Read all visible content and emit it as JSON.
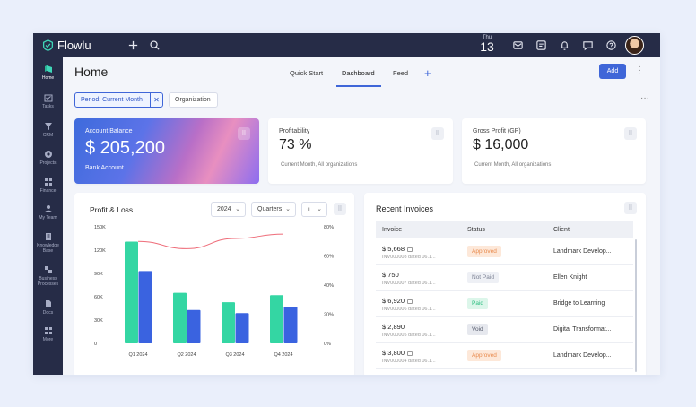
{
  "app": {
    "name": "Flowlu",
    "date_dow": "Thu",
    "date_day": "13"
  },
  "sidebar": {
    "items": [
      {
        "label": "Home",
        "icon": "home-icon"
      },
      {
        "label": "Tasks",
        "icon": "tasks-icon"
      },
      {
        "label": "CRM",
        "icon": "crm-icon"
      },
      {
        "label": "Projects",
        "icon": "projects-icon"
      },
      {
        "label": "Finance",
        "icon": "finance-icon"
      },
      {
        "label": "My Team",
        "icon": "team-icon"
      },
      {
        "label": "Knowledge Base",
        "icon": "knowledge-icon"
      },
      {
        "label": "Business Processes",
        "icon": "processes-icon"
      },
      {
        "label": "Docs",
        "icon": "docs-icon"
      },
      {
        "label": "More",
        "icon": "more-icon"
      }
    ]
  },
  "header": {
    "title": "Home",
    "tabs": [
      "Quick Start",
      "Dashboard",
      "Feed"
    ],
    "active_tab": "Dashboard",
    "add_label": "Add"
  },
  "filters": {
    "period": "Period: Current Month",
    "organization": "Organization"
  },
  "balance": {
    "label": "Account Balance",
    "value": "$ 205,200",
    "sub": "Bank Account"
  },
  "profitability": {
    "label": "Profitability",
    "value": "73 %",
    "sub": "Current Month, All organizations"
  },
  "gross_profit": {
    "label": "Gross Profit (GP)",
    "value": "$ 16,000",
    "sub": "Current Month, All organizations"
  },
  "profit_loss": {
    "title": "Profit & Loss",
    "year": "2024",
    "period": "Quarters",
    "chart_type_icon": "bar-chart-icon"
  },
  "chart_data": {
    "type": "bar",
    "categories": [
      "Q1 2024",
      "Q2 2024",
      "Q3 2024",
      "Q4 2024"
    ],
    "series": [
      {
        "name": "",
        "color": "#34d6a3",
        "values": [
          131000,
          65000,
          53000,
          62000
        ]
      },
      {
        "name": "",
        "color": "#3a63e0",
        "values": [
          93000,
          43000,
          39000,
          47000
        ]
      }
    ],
    "line": {
      "color": "#ee6b78",
      "values": [
        70,
        65,
        72,
        75
      ]
    },
    "left_ticks": [
      "150K",
      "120K",
      "90K",
      "60K",
      "30K",
      "0"
    ],
    "right_ticks": [
      "80%",
      "60%",
      "40%",
      "20%",
      "0%"
    ],
    "ylim": [
      0,
      150000
    ],
    "y2lim": [
      0,
      80
    ]
  },
  "invoices": {
    "title": "Recent Invoices",
    "columns": [
      "Invoice",
      "Status",
      "Client"
    ],
    "rows": [
      {
        "amount": "$ 5,668",
        "number": "INV000008 dated 06.1...",
        "status": "Approved",
        "client": "Landmark Develop...",
        "mail": true,
        "bg": "#fde8d9",
        "fg": "#e8884a"
      },
      {
        "amount": "$ 750",
        "number": "INV000007 dated 06.1...",
        "status": "Not Paid",
        "client": "Ellen Knight",
        "mail": false,
        "bg": "#eef0f5",
        "fg": "#7c8294"
      },
      {
        "amount": "$ 6,920",
        "number": "INV000006 dated 06.1...",
        "status": "Paid",
        "client": "Bridge to Learning",
        "mail": true,
        "bg": "#dcf6ea",
        "fg": "#2fbf82"
      },
      {
        "amount": "$ 2,890",
        "number": "INV000005 dated 06.1...",
        "status": "Void",
        "client": "Digital Transformat...",
        "mail": false,
        "bg": "#e6e8ee",
        "fg": "#555b6c"
      },
      {
        "amount": "$ 3,800",
        "number": "INV000004 dated 06.1...",
        "status": "Approved",
        "client": "Landmark Develop...",
        "mail": true,
        "bg": "#fde8d9",
        "fg": "#e8884a"
      }
    ]
  }
}
